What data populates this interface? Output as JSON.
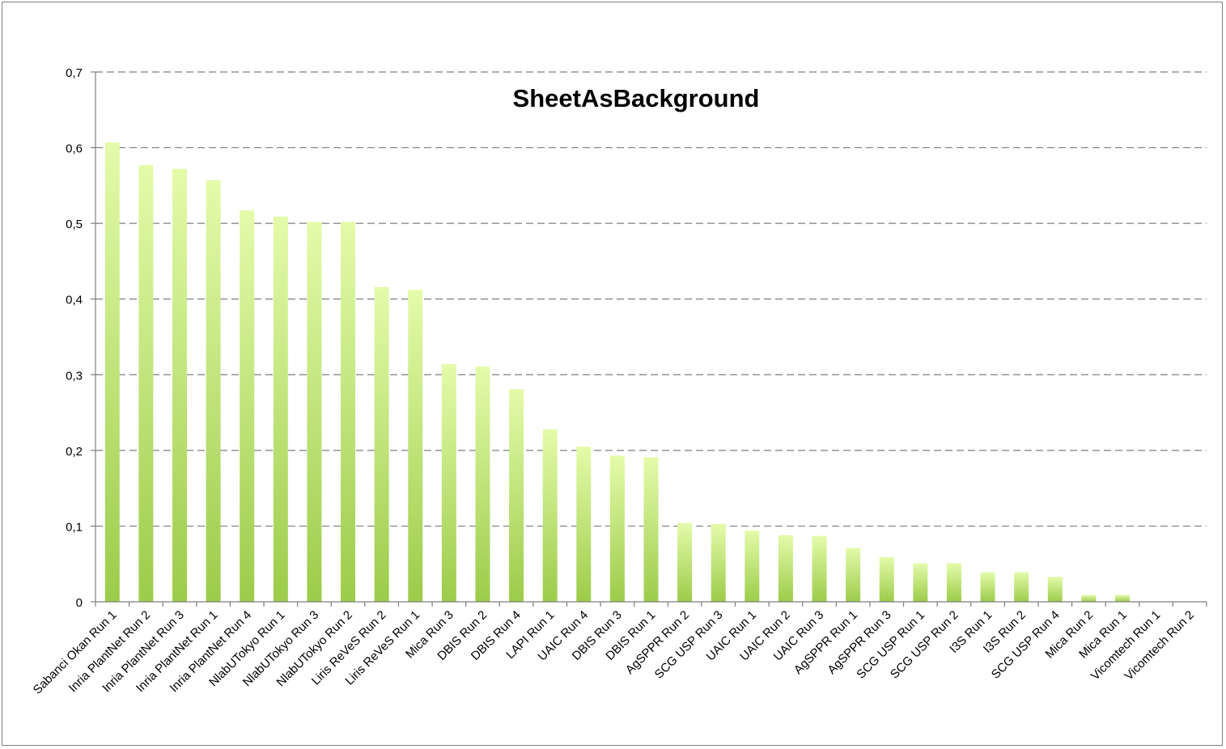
{
  "chart_data": {
    "type": "bar",
    "title": "SheetAsBackground",
    "xlabel": "",
    "ylabel": "",
    "ylim": [
      0,
      0.7
    ],
    "yticks": [
      "0",
      "0,1",
      "0,2",
      "0,3",
      "0,4",
      "0,5",
      "0,6",
      "0,7"
    ],
    "grid": true,
    "legend": "none",
    "colors": {
      "bar_top": "#e4fbaa",
      "bar_bottom": "#9ccc4a",
      "grid": "#7f7f7f",
      "axis": "#7f7f7f"
    },
    "categories": [
      "Sabanci Okan Run 1",
      "Inria PlantNet Run 2",
      "Inria PlantNet Run 3",
      "Inria PlantNet Run 1",
      "Inria PlantNet Run 4",
      "NlabUTokyo Run 1",
      "NlabUTokyo Run 3",
      "NlabUTokyo Run 2",
      "Liris ReVeS Run 2",
      "Liris ReVeS Run 1",
      "Mica Run 3",
      "DBIS Run 2",
      "DBIS Run 4",
      "LAPI Run 1",
      "UAIC Run 4",
      "DBIS Run 3",
      "DBIS Run 1",
      "AgSPPR Run 2",
      "SCG USP Run 3",
      "UAIC Run 1",
      "UAIC Run 2",
      "UAIC Run 3",
      "AgSPPR Run 1",
      "AgSPPR Run 3",
      "SCG USP Run 1",
      "SCG USP Run 2",
      "I3S Run 1",
      "I3S Run 2",
      "SCG USP Run 4",
      "Mica Run 2",
      "Mica Run 1",
      "Vicomtech Run 1",
      "Vicomtech Run 2"
    ],
    "values": [
      0.607,
      0.577,
      0.572,
      0.557,
      0.517,
      0.509,
      0.502,
      0.502,
      0.416,
      0.412,
      0.314,
      0.311,
      0.281,
      0.228,
      0.205,
      0.193,
      0.191,
      0.104,
      0.103,
      0.094,
      0.088,
      0.087,
      0.071,
      0.059,
      0.051,
      0.051,
      0.039,
      0.039,
      0.033,
      0.009,
      0.009,
      0.0,
      0.0
    ]
  }
}
